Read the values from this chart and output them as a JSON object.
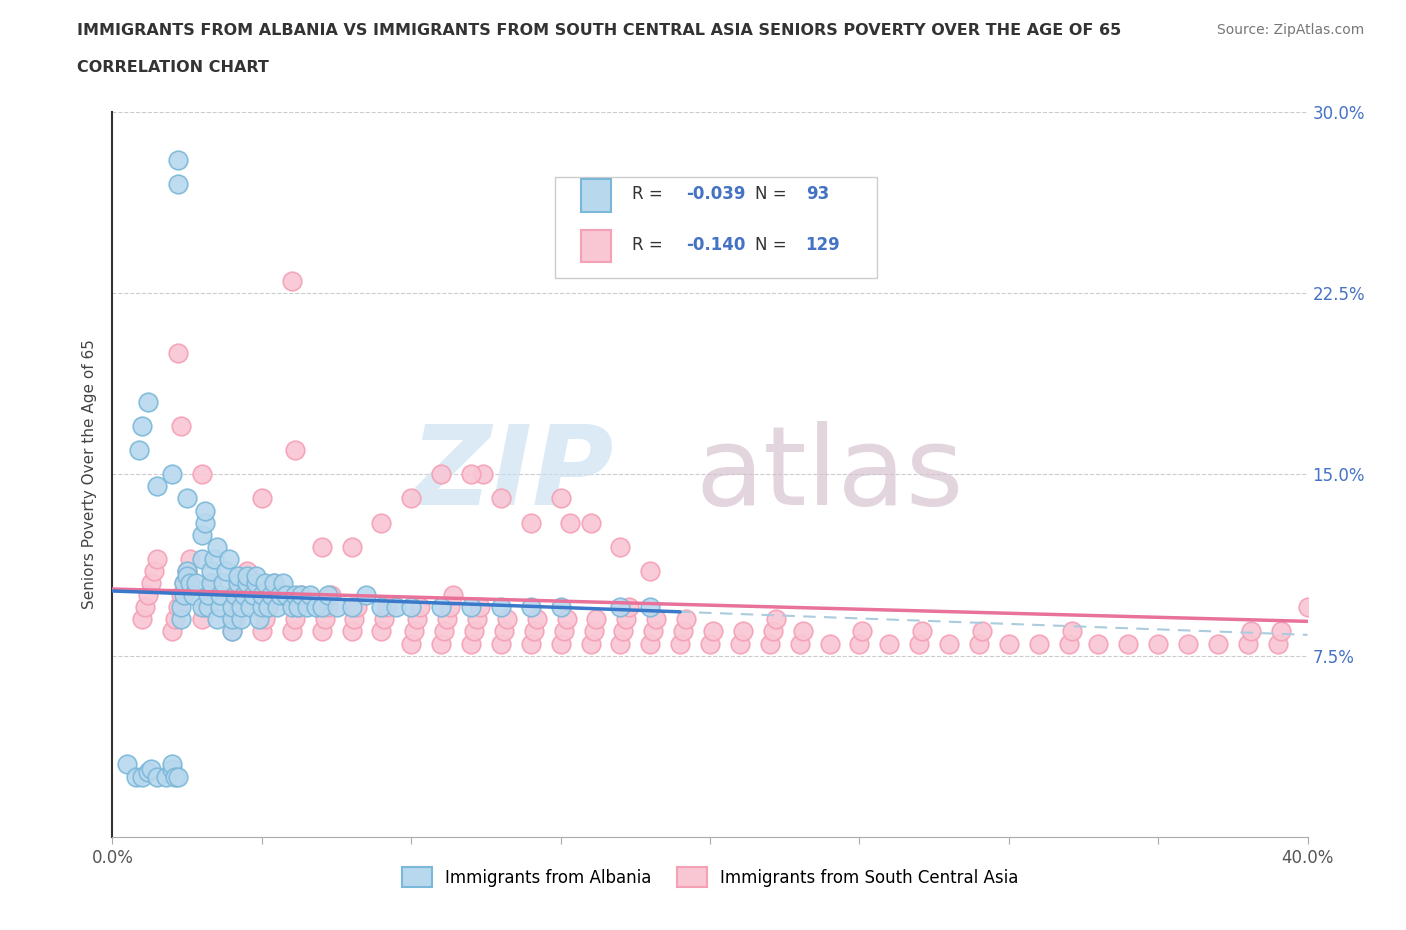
{
  "title_line1": "IMMIGRANTS FROM ALBANIA VS IMMIGRANTS FROM SOUTH CENTRAL ASIA SENIORS POVERTY OVER THE AGE OF 65",
  "title_line2": "CORRELATION CHART",
  "source_text": "Source: ZipAtlas.com",
  "ylabel": "Seniors Poverty Over the Age of 65",
  "xlim": [
    0.0,
    0.4
  ],
  "ylim": [
    0.0,
    0.3
  ],
  "xticks": [
    0.0,
    0.05,
    0.1,
    0.15,
    0.2,
    0.25,
    0.3,
    0.35,
    0.4
  ],
  "xticklabels_sparse": {
    "0": "0.0%",
    "8": "40.0%"
  },
  "yticks_left": [
    0.0,
    0.075,
    0.15,
    0.225,
    0.3
  ],
  "yticks_right": [
    0.075,
    0.15,
    0.225,
    0.3
  ],
  "yticklabels_right": [
    "7.5%",
    "15.0%",
    "22.5%",
    "30.0%"
  ],
  "albania_color": "#7ab8d9",
  "albania_fill": "#b8d8ee",
  "sca_color": "#f4a0b5",
  "sca_fill": "#f9c6d4",
  "albania_R": -0.039,
  "albania_N": 93,
  "sca_R": -0.14,
  "sca_N": 129,
  "albania_line_color": "#3a78c9",
  "sca_line_color": "#e8729a",
  "dashed_line_color": "#aaccdd",
  "tick_color": "#aaaaaa",
  "right_label_color": "#4472C4",
  "watermark_zip_color": "#c8dff0",
  "watermark_atlas_color": "#d4bfcc",
  "legend_label_albania": "Immigrants from Albania",
  "legend_label_sca": "Immigrants from South Central Asia",
  "albania_x": [
    0.005,
    0.008,
    0.01,
    0.012,
    0.013,
    0.015,
    0.018,
    0.02,
    0.02,
    0.021,
    0.022,
    0.022,
    0.022,
    0.023,
    0.023,
    0.024,
    0.024,
    0.025,
    0.025,
    0.026,
    0.027,
    0.028,
    0.03,
    0.03,
    0.03,
    0.031,
    0.031,
    0.032,
    0.032,
    0.033,
    0.033,
    0.034,
    0.035,
    0.035,
    0.036,
    0.036,
    0.037,
    0.038,
    0.039,
    0.04,
    0.04,
    0.04,
    0.041,
    0.042,
    0.042,
    0.043,
    0.043,
    0.044,
    0.045,
    0.045,
    0.046,
    0.047,
    0.048,
    0.048,
    0.049,
    0.05,
    0.05,
    0.051,
    0.052,
    0.053,
    0.054,
    0.055,
    0.056,
    0.057,
    0.058,
    0.06,
    0.061,
    0.062,
    0.063,
    0.065,
    0.066,
    0.068,
    0.07,
    0.072,
    0.075,
    0.08,
    0.085,
    0.09,
    0.095,
    0.1,
    0.11,
    0.12,
    0.13,
    0.14,
    0.15,
    0.17,
    0.18,
    0.009,
    0.01,
    0.012,
    0.015,
    0.02,
    0.025
  ],
  "albania_y": [
    0.03,
    0.025,
    0.025,
    0.027,
    0.028,
    0.025,
    0.025,
    0.028,
    0.03,
    0.025,
    0.28,
    0.27,
    0.025,
    0.09,
    0.095,
    0.1,
    0.105,
    0.11,
    0.108,
    0.105,
    0.1,
    0.105,
    0.095,
    0.115,
    0.125,
    0.13,
    0.135,
    0.095,
    0.1,
    0.105,
    0.11,
    0.115,
    0.12,
    0.09,
    0.095,
    0.1,
    0.105,
    0.11,
    0.115,
    0.085,
    0.09,
    0.095,
    0.1,
    0.105,
    0.108,
    0.09,
    0.095,
    0.1,
    0.105,
    0.108,
    0.095,
    0.1,
    0.105,
    0.108,
    0.09,
    0.095,
    0.1,
    0.105,
    0.095,
    0.1,
    0.105,
    0.095,
    0.1,
    0.105,
    0.1,
    0.095,
    0.1,
    0.095,
    0.1,
    0.095,
    0.1,
    0.095,
    0.095,
    0.1,
    0.095,
    0.095,
    0.1,
    0.095,
    0.095,
    0.095,
    0.095,
    0.095,
    0.095,
    0.095,
    0.095,
    0.095,
    0.095,
    0.16,
    0.17,
    0.18,
    0.145,
    0.15,
    0.14
  ],
  "sca_x": [
    0.01,
    0.011,
    0.012,
    0.013,
    0.014,
    0.015,
    0.02,
    0.021,
    0.022,
    0.023,
    0.024,
    0.025,
    0.026,
    0.03,
    0.031,
    0.032,
    0.033,
    0.04,
    0.041,
    0.042,
    0.043,
    0.044,
    0.045,
    0.05,
    0.051,
    0.052,
    0.053,
    0.054,
    0.06,
    0.061,
    0.062,
    0.063,
    0.07,
    0.071,
    0.072,
    0.073,
    0.08,
    0.081,
    0.082,
    0.09,
    0.091,
    0.092,
    0.1,
    0.101,
    0.102,
    0.103,
    0.11,
    0.111,
    0.112,
    0.113,
    0.114,
    0.12,
    0.121,
    0.122,
    0.123,
    0.124,
    0.13,
    0.131,
    0.132,
    0.14,
    0.141,
    0.142,
    0.15,
    0.151,
    0.152,
    0.153,
    0.16,
    0.161,
    0.162,
    0.17,
    0.171,
    0.172,
    0.173,
    0.18,
    0.181,
    0.182,
    0.19,
    0.191,
    0.192,
    0.2,
    0.201,
    0.21,
    0.211,
    0.22,
    0.221,
    0.222,
    0.23,
    0.231,
    0.24,
    0.25,
    0.251,
    0.26,
    0.27,
    0.271,
    0.28,
    0.29,
    0.291,
    0.3,
    0.31,
    0.32,
    0.321,
    0.33,
    0.34,
    0.35,
    0.36,
    0.37,
    0.38,
    0.381,
    0.39,
    0.391,
    0.4,
    0.022,
    0.023,
    0.03,
    0.05,
    0.06,
    0.061,
    0.07,
    0.08,
    0.09,
    0.1,
    0.11,
    0.12,
    0.13,
    0.14,
    0.15,
    0.16,
    0.17,
    0.18
  ],
  "sca_y": [
    0.09,
    0.095,
    0.1,
    0.105,
    0.11,
    0.115,
    0.085,
    0.09,
    0.095,
    0.1,
    0.105,
    0.11,
    0.115,
    0.09,
    0.095,
    0.1,
    0.105,
    0.085,
    0.09,
    0.095,
    0.1,
    0.105,
    0.11,
    0.085,
    0.09,
    0.095,
    0.1,
    0.105,
    0.085,
    0.09,
    0.095,
    0.1,
    0.085,
    0.09,
    0.095,
    0.1,
    0.085,
    0.09,
    0.095,
    0.085,
    0.09,
    0.095,
    0.08,
    0.085,
    0.09,
    0.095,
    0.08,
    0.085,
    0.09,
    0.095,
    0.1,
    0.08,
    0.085,
    0.09,
    0.095,
    0.15,
    0.08,
    0.085,
    0.09,
    0.08,
    0.085,
    0.09,
    0.08,
    0.085,
    0.09,
    0.13,
    0.08,
    0.085,
    0.09,
    0.08,
    0.085,
    0.09,
    0.095,
    0.08,
    0.085,
    0.09,
    0.08,
    0.085,
    0.09,
    0.08,
    0.085,
    0.08,
    0.085,
    0.08,
    0.085,
    0.09,
    0.08,
    0.085,
    0.08,
    0.08,
    0.085,
    0.08,
    0.08,
    0.085,
    0.08,
    0.08,
    0.085,
    0.08,
    0.08,
    0.08,
    0.085,
    0.08,
    0.08,
    0.08,
    0.08,
    0.08,
    0.08,
    0.085,
    0.08,
    0.085,
    0.095,
    0.2,
    0.17,
    0.15,
    0.14,
    0.23,
    0.16,
    0.12,
    0.12,
    0.13,
    0.14,
    0.15,
    0.15,
    0.14,
    0.13,
    0.14,
    0.13,
    0.12,
    0.11
  ]
}
